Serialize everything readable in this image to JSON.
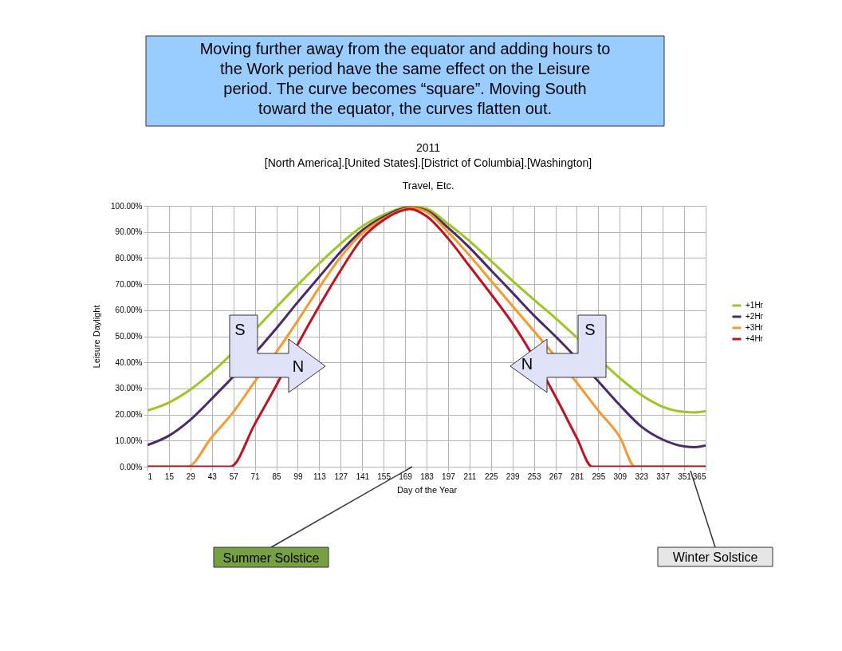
{
  "chart_data": {
    "type": "line",
    "title": "2011",
    "subtitle": "[North America].[United States].[District of Columbia].[Washington]",
    "xlabel": "Day of the Year",
    "ylabel": "Leisure Daylight",
    "xlim": [
      1,
      365
    ],
    "xticks": [
      1,
      15,
      29,
      43,
      57,
      71,
      85,
      99,
      113,
      127,
      141,
      155,
      169,
      183,
      197,
      211,
      225,
      239,
      253,
      267,
      281,
      295,
      309,
      323,
      337,
      351,
      365
    ],
    "ylim": [
      0,
      100
    ],
    "yticks": [
      {
        "value": 0,
        "label": "0.00%"
      },
      {
        "value": 10,
        "label": "10.00%"
      },
      {
        "value": 20,
        "label": "20.00%"
      },
      {
        "value": 30,
        "label": "30.00%"
      },
      {
        "value": 40,
        "label": "40.00%"
      },
      {
        "value": 50,
        "label": "50.00%"
      },
      {
        "value": 60,
        "label": "60.00%"
      },
      {
        "value": 70,
        "label": "70.00%"
      },
      {
        "value": 80,
        "label": "80.00%"
      },
      {
        "value": 90,
        "label": "90.00%"
      },
      {
        "value": 100,
        "label": "100.00%"
      }
    ],
    "grid": true,
    "legend": "right",
    "marker": "none",
    "line_style": "solid",
    "series": [
      {
        "name": "+1Hr",
        "color": "#9dc720",
        "x": [
          1,
          15,
          29,
          43,
          57,
          71,
          85,
          99,
          113,
          127,
          141,
          155,
          169,
          172,
          183,
          197,
          211,
          225,
          239,
          253,
          267,
          281,
          295,
          309,
          323,
          337,
          351,
          358,
          365
        ],
        "values": [
          21.5,
          24.6,
          29.6,
          36.2,
          null,
          null,
          61.1,
          69.7,
          77.9,
          85.5,
          92.1,
          96.6,
          99.5,
          99.7,
          98.9,
          93.1,
          86.5,
          78.9,
          71.3,
          64,
          57,
          49.5,
          null,
          34,
          27.5,
          23,
          21,
          20.8,
          21.3
        ]
      },
      {
        "name": "+2Hr",
        "color": "#4b2a6b",
        "x": [
          1,
          15,
          29,
          43,
          57,
          71,
          85,
          99,
          113,
          127,
          141,
          155,
          169,
          172,
          183,
          197,
          211,
          225,
          239,
          253,
          267,
          281,
          295,
          309,
          323,
          337,
          351,
          358,
          365
        ],
        "values": [
          8.3,
          11.9,
          18,
          26.1,
          null,
          null,
          53,
          63.1,
          72.8,
          82.4,
          90.6,
          95.8,
          99.2,
          99.4,
          98.2,
          91.6,
          84,
          75.3,
          66.7,
          58,
          50,
          null,
          32.7,
          23.6,
          15.4,
          10.4,
          7.8,
          7.5,
          8.1
        ]
      },
      {
        "name": "+3Hr",
        "color": "#f7992b",
        "x": [
          1,
          27,
          43,
          57,
          71,
          85,
          99,
          113,
          127,
          141,
          155,
          169,
          172,
          183,
          197,
          211,
          225,
          239,
          253,
          267,
          281,
          295,
          309,
          319,
          365
        ],
        "values": [
          0,
          0,
          11.4,
          21,
          32.7,
          43.9,
          56,
          68.7,
          80.4,
          89.5,
          95.1,
          98.9,
          99.2,
          97.7,
          90,
          81,
          71.3,
          61.6,
          52,
          null,
          32.2,
          21.5,
          11.4,
          0,
          0
        ]
      },
      {
        "name": "+4Hr",
        "color": "#c01120",
        "x": [
          1,
          55,
          71,
          85,
          99,
          113,
          127,
          141,
          155,
          169,
          172,
          183,
          197,
          211,
          225,
          239,
          253,
          267,
          281,
          291,
          365
        ],
        "values": [
          0,
          0,
          16.4,
          31.2,
          46.9,
          61.6,
          75.3,
          87.5,
          94.6,
          98.5,
          98.8,
          96,
          87.5,
          76.9,
          66.2,
          55,
          null,
          27,
          11,
          0,
          0
        ]
      }
    ],
    "annotations": [
      "Moving further away from the equator and adding hours to\nthe Work period have the same effect on the Leisure\nperiod.  The curve becomes “square”.  Moving South\ntoward the equator, the curves flatten out.",
      "Travel, Etc.",
      "S",
      "N",
      "S",
      "N",
      "Summer Solstice",
      "Winter Solstice"
    ]
  }
}
